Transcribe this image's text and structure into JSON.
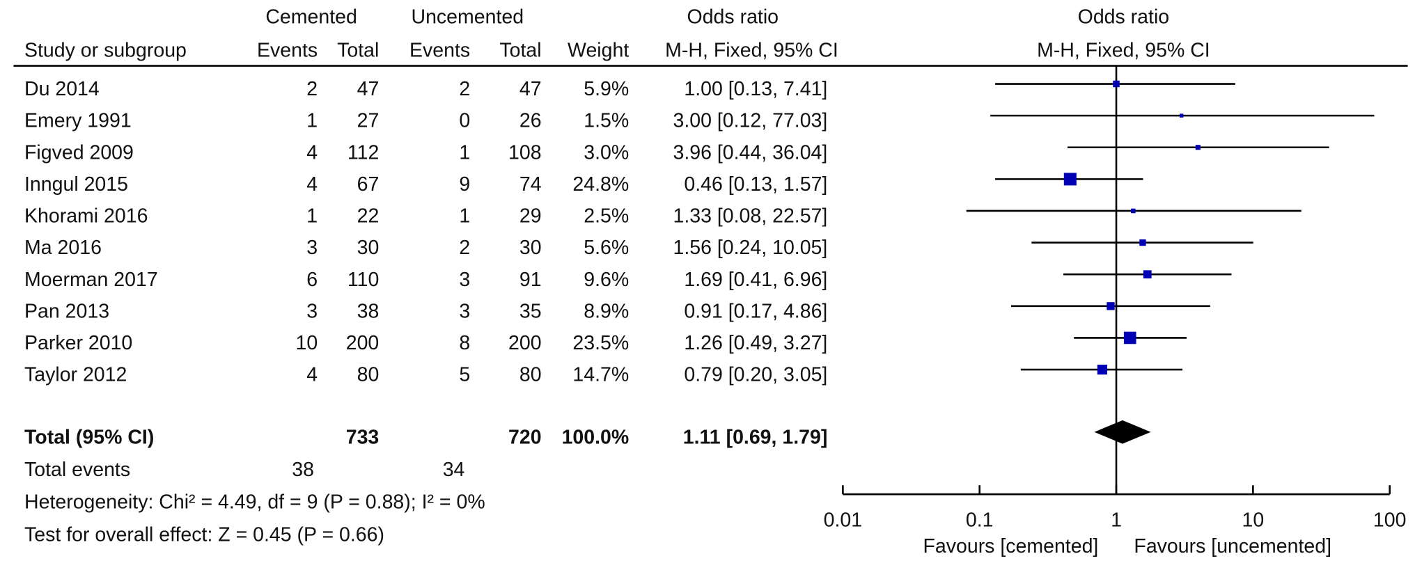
{
  "chart_data": {
    "type": "forest",
    "log_scale": true,
    "xlim": [
      0.01,
      100
    ],
    "xticks": [
      0.01,
      0.1,
      1,
      10,
      100
    ],
    "color": "#0000b4",
    "headers": {
      "group_cemented": "Cemented",
      "group_uncemented": "Uncemented",
      "odds_ratio_table": "Odds ratio",
      "odds_ratio_plot": "Odds ratio",
      "study": "Study or subgroup",
      "events_c": "Events",
      "total_c": "Total",
      "events_u": "Events",
      "total_u": "Total",
      "weight": "Weight",
      "method_table": "M-H, Fixed, 95% CI",
      "method_plot": "M-H, Fixed, 95% CI"
    },
    "studies": [
      {
        "name": "Du 2014",
        "cemented_events": 2,
        "cemented_total": 47,
        "uncemented_events": 2,
        "uncemented_total": 47,
        "weight": 5.9,
        "weight_label": "5.9%",
        "ci_label": "1.00 [0.13, 7.41]",
        "or": 1.0,
        "ci_low": 0.13,
        "ci_high": 7.41
      },
      {
        "name": "Emery 1991",
        "cemented_events": 1,
        "cemented_total": 27,
        "uncemented_events": 0,
        "uncemented_total": 26,
        "weight": 1.5,
        "weight_label": "1.5%",
        "ci_label": "3.00 [0.12, 77.03]",
        "or": 3.0,
        "ci_low": 0.12,
        "ci_high": 77.03
      },
      {
        "name": "Figved 2009",
        "cemented_events": 4,
        "cemented_total": 112,
        "uncemented_events": 1,
        "uncemented_total": 108,
        "weight": 3.0,
        "weight_label": "3.0%",
        "ci_label": "3.96 [0.44, 36.04]",
        "or": 3.96,
        "ci_low": 0.44,
        "ci_high": 36.04
      },
      {
        "name": "Inngul 2015",
        "cemented_events": 4,
        "cemented_total": 67,
        "uncemented_events": 9,
        "uncemented_total": 74,
        "weight": 24.8,
        "weight_label": "24.8%",
        "ci_label": "0.46 [0.13, 1.57]",
        "or": 0.46,
        "ci_low": 0.13,
        "ci_high": 1.57
      },
      {
        "name": "Khorami 2016",
        "cemented_events": 1,
        "cemented_total": 22,
        "uncemented_events": 1,
        "uncemented_total": 29,
        "weight": 2.5,
        "weight_label": "2.5%",
        "ci_label": "1.33 [0.08, 22.57]",
        "or": 1.33,
        "ci_low": 0.08,
        "ci_high": 22.57
      },
      {
        "name": "Ma 2016",
        "cemented_events": 3,
        "cemented_total": 30,
        "uncemented_events": 2,
        "uncemented_total": 30,
        "weight": 5.6,
        "weight_label": "5.6%",
        "ci_label": "1.56 [0.24, 10.05]",
        "or": 1.56,
        "ci_low": 0.24,
        "ci_high": 10.05
      },
      {
        "name": "Moerman 2017",
        "cemented_events": 6,
        "cemented_total": 110,
        "uncemented_events": 3,
        "uncemented_total": 91,
        "weight": 9.6,
        "weight_label": "9.6%",
        "ci_label": "1.69 [0.41, 6.96]",
        "or": 1.69,
        "ci_low": 0.41,
        "ci_high": 6.96
      },
      {
        "name": "Pan 2013",
        "cemented_events": 3,
        "cemented_total": 38,
        "uncemented_events": 3,
        "uncemented_total": 35,
        "weight": 8.9,
        "weight_label": "8.9%",
        "ci_label": "0.91 [0.17, 4.86]",
        "or": 0.91,
        "ci_low": 0.17,
        "ci_high": 4.86
      },
      {
        "name": "Parker 2010",
        "cemented_events": 10,
        "cemented_total": 200,
        "uncemented_events": 8,
        "uncemented_total": 200,
        "weight": 23.5,
        "weight_label": "23.5%",
        "ci_label": "1.26 [0.49, 3.27]",
        "or": 1.26,
        "ci_low": 0.49,
        "ci_high": 3.27
      },
      {
        "name": "Taylor 2012",
        "cemented_events": 4,
        "cemented_total": 80,
        "uncemented_events": 5,
        "uncemented_total": 80,
        "weight": 14.7,
        "weight_label": "14.7%",
        "ci_label": "0.79 [0.20, 3.05]",
        "or": 0.79,
        "ci_low": 0.2,
        "ci_high": 3.05
      }
    ],
    "total": {
      "name": "Total (95% CI)",
      "cemented_total": 733,
      "uncemented_total": 720,
      "weight": 100.0,
      "weight_label": "100.0%",
      "ci_label": "1.11 [0.69, 1.79]",
      "or": 1.11,
      "ci_low": 0.69,
      "ci_high": 1.79
    },
    "total_events": {
      "label": "Total events",
      "cemented": 38,
      "uncemented": 34
    },
    "heterogeneity": "Heterogeneity: Chi² = 4.49, df = 9 (P = 0.88); I² = 0%",
    "overall_effect": "Test for overall effect: Z = 0.45 (P = 0.66)",
    "favours_left": "Favours [cemented]",
    "favours_right": "Favours [uncemented]"
  }
}
